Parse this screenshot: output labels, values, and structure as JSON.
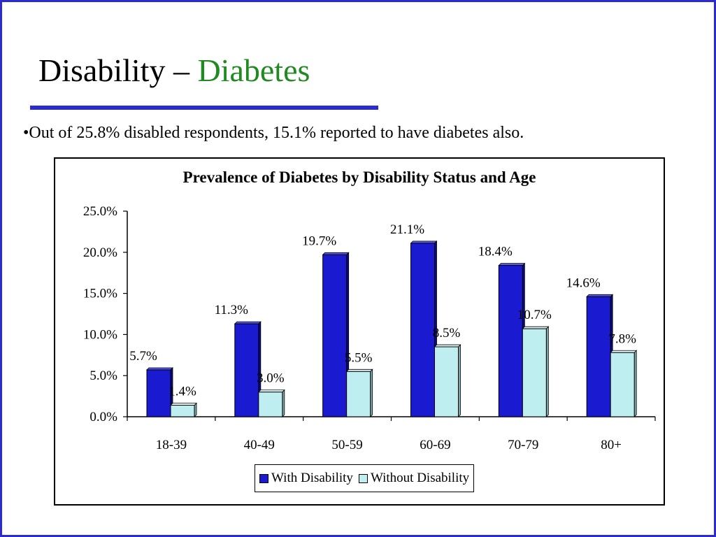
{
  "slide": {
    "title_main": "Disability – ",
    "title_accent": "Diabetes",
    "bullet": "•Out of 25.8% disabled respondents, 15.1% reported to have diabetes also.",
    "colors": {
      "border": "#2b2bd6",
      "title_accent": "#1f8a1f",
      "rule": "#2b2bd6"
    }
  },
  "chart_data": {
    "type": "bar",
    "title": "Prevalence of Diabetes by Disability Status and Age",
    "xlabel": "",
    "ylabel": "",
    "categories": [
      "18-39",
      "40-49",
      "50-59",
      "60-69",
      "70-79",
      "80+"
    ],
    "series": [
      {
        "name": "With Disability",
        "values": [
          5.7,
          11.3,
          19.7,
          21.1,
          18.4,
          14.6
        ],
        "labels": [
          "5.7%",
          "11.3%",
          "19.7%",
          "21.1%",
          "18.4%",
          "14.6%"
        ],
        "color": "#1a1ad0"
      },
      {
        "name": "Without Disability",
        "values": [
          1.4,
          3.0,
          5.5,
          8.5,
          10.7,
          7.8
        ],
        "labels": [
          "1.4%",
          "3.0%",
          "5.5%",
          "8.5%",
          "10.7%",
          "7.8%"
        ],
        "color": "#bfeef0"
      }
    ],
    "ylim": [
      0,
      25
    ],
    "yticks": [
      0,
      5,
      10,
      15,
      20,
      25
    ],
    "ytick_labels": [
      "0.0%",
      "5.0%",
      "10.0%",
      "15.0%",
      "20.0%",
      "25.0%"
    ],
    "grid": false,
    "legend_position": "bottom"
  }
}
